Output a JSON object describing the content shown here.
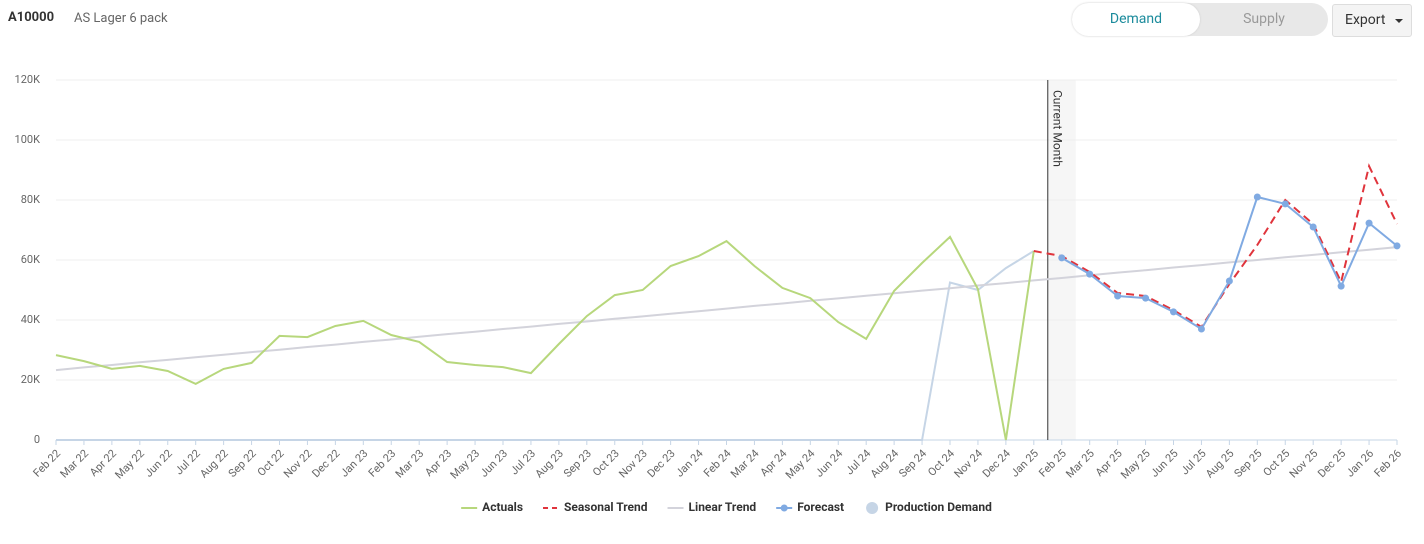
{
  "header": {
    "code": "A10000",
    "name": "AS Lager 6 pack"
  },
  "tabs": [
    "Demand",
    "Supply"
  ],
  "export": "Export",
  "chart_data": {
    "type": "line",
    "categories": [
      "Feb 22",
      "Mar 22",
      "Apr 22",
      "May 22",
      "Jun 22",
      "Jul 22",
      "Aug 22",
      "Sep 22",
      "Oct 22",
      "Nov 22",
      "Dec 22",
      "Jan 23",
      "Feb 23",
      "Mar 23",
      "Apr 23",
      "May 23",
      "Jun 23",
      "Jul 23",
      "Aug 23",
      "Sep 23",
      "Oct 23",
      "Nov 23",
      "Dec 23",
      "Jan 24",
      "Feb 24",
      "Mar 24",
      "Apr 24",
      "May 24",
      "Jun 24",
      "Jul 24",
      "Aug 24",
      "Sep 24",
      "Oct 24",
      "Nov 24",
      "Dec 24",
      "Jan 25",
      "Feb 25",
      "Mar 25",
      "Apr 25",
      "May 25",
      "Jun 25",
      "Jul 25",
      "Aug 25",
      "Sep 25",
      "Oct 25",
      "Nov 25",
      "Dec 25",
      "Jan 26",
      "Feb 26"
    ],
    "ylim": [
      0,
      120000
    ],
    "yticks": [
      0,
      {
        "value": 20000,
        "label": "20K"
      },
      {
        "value": 40000,
        "label": "40K"
      },
      {
        "value": 60000,
        "label": "60K"
      },
      {
        "value": 80000,
        "label": "80K"
      },
      {
        "value": 100000,
        "label": "100K"
      },
      {
        "value": 120000,
        "label": "120K"
      }
    ],
    "grid": true,
    "current_month": {
      "label": "Current Month",
      "x": "Feb 25"
    },
    "series": [
      {
        "name": "Actuals",
        "color": "#b7d77c",
        "values": [
          28300,
          26300,
          23700,
          24700,
          23000,
          18700,
          23700,
          25700,
          34700,
          34300,
          38000,
          39700,
          35000,
          32700,
          26000,
          25000,
          24300,
          22300,
          32000,
          41300,
          48300,
          50000,
          58000,
          61300,
          66300,
          58000,
          50700,
          47300,
          39300,
          33700,
          49700,
          59000,
          67700,
          50300,
          0,
          63000,
          null,
          null,
          null,
          null,
          null,
          null,
          null,
          null,
          null,
          null,
          null,
          null,
          null
        ]
      },
      {
        "name": "Seasonal Trend",
        "color": "#e0343c",
        "dashed": true,
        "values": [
          null,
          null,
          null,
          null,
          null,
          null,
          null,
          null,
          null,
          null,
          null,
          null,
          null,
          null,
          null,
          null,
          null,
          null,
          null,
          null,
          null,
          null,
          null,
          null,
          null,
          null,
          null,
          null,
          null,
          null,
          null,
          null,
          null,
          null,
          null,
          63000,
          61300,
          56000,
          49000,
          48000,
          43300,
          37700,
          52000,
          65000,
          80000,
          72000,
          52700,
          91300,
          72000
        ]
      },
      {
        "name": "Linear Trend",
        "color": "#d3d3db",
        "values": [
          23300,
          24200,
          25000,
          25900,
          26700,
          27600,
          28400,
          29300,
          30100,
          31000,
          31800,
          32700,
          33500,
          34400,
          35300,
          36100,
          37000,
          37800,
          38700,
          39500,
          40400,
          41200,
          42100,
          42900,
          43800,
          44700,
          45500,
          46400,
          47200,
          48100,
          48900,
          49800,
          50600,
          51500,
          52300,
          53200,
          54000,
          54900,
          55800,
          56600,
          57500,
          58300,
          59200,
          60000,
          60900,
          61700,
          62600,
          63400,
          64300
        ]
      },
      {
        "name": "Forecast",
        "color": "#80aae2",
        "markers": true,
        "values": [
          null,
          null,
          null,
          null,
          null,
          null,
          null,
          null,
          null,
          null,
          null,
          null,
          null,
          null,
          null,
          null,
          null,
          null,
          null,
          null,
          null,
          null,
          null,
          null,
          null,
          null,
          null,
          null,
          null,
          null,
          null,
          null,
          null,
          null,
          null,
          null,
          60700,
          55300,
          48000,
          47300,
          42700,
          37000,
          53000,
          81000,
          78700,
          71000,
          51300,
          72300,
          64700
        ]
      },
      {
        "name": "Production Demand",
        "color": "#c6d5e6",
        "legend_symbol": "circle",
        "values": [
          0,
          0,
          0,
          0,
          0,
          0,
          0,
          0,
          0,
          0,
          0,
          0,
          0,
          0,
          0,
          0,
          0,
          0,
          0,
          0,
          0,
          0,
          0,
          0,
          0,
          0,
          0,
          0,
          0,
          0,
          0,
          0,
          52500,
          50000,
          57300,
          63000,
          null,
          null,
          null,
          null,
          null,
          null,
          null,
          null,
          null,
          null,
          null,
          null,
          null
        ]
      }
    ]
  }
}
